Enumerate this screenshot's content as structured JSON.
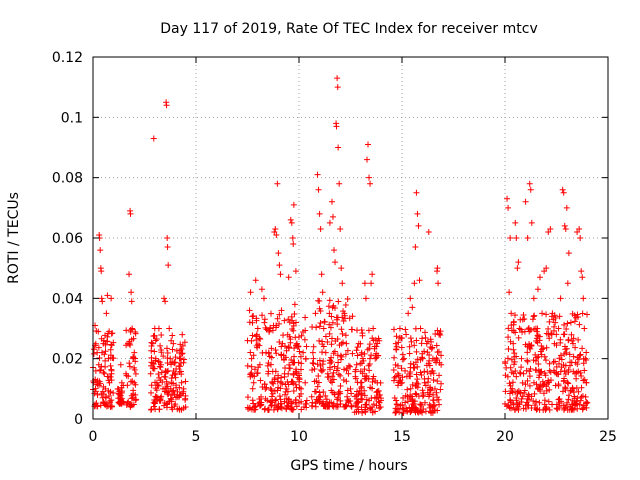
{
  "chart_data": {
    "type": "scatter",
    "title": "Day 117 of 2019, Rate Of TEC Index for receiver mtcv",
    "xlabel": "GPS time / hours",
    "ylabel": "ROTI / TECUs",
    "xlim": [
      0,
      25
    ],
    "ylim": [
      0,
      0.12
    ],
    "grid": true,
    "marker": "+",
    "color": "#ff0000",
    "x_ticks": [
      0,
      5,
      10,
      15,
      20,
      25
    ],
    "x_tick_labels": [
      "0",
      "5",
      "10",
      "15",
      "20",
      "25"
    ],
    "y_ticks": [
      0,
      0.02,
      0.04,
      0.06,
      0.08,
      0.1,
      0.12
    ],
    "y_tick_labels": [
      "0",
      "0.02",
      "0.04",
      "0.06",
      "0.08",
      "0.1",
      "0.12"
    ],
    "series": [
      {
        "name": "ROTI",
        "points": [
          [
            0.1,
            0.031
          ],
          [
            0.15,
            0.012
          ],
          [
            0.2,
            0.022
          ],
          [
            0.22,
            0.008
          ],
          [
            0.28,
            0.018
          ],
          [
            0.3,
            0.061
          ],
          [
            0.32,
            0.06
          ],
          [
            0.35,
            0.056
          ],
          [
            0.38,
            0.05
          ],
          [
            0.4,
            0.049
          ],
          [
            0.42,
            0.04
          ],
          [
            0.45,
            0.039
          ],
          [
            0.5,
            0.025
          ],
          [
            0.55,
            0.015
          ],
          [
            0.6,
            0.01
          ],
          [
            0.65,
            0.035
          ],
          [
            0.7,
            0.041
          ],
          [
            0.75,
            0.02
          ],
          [
            0.8,
            0.012
          ],
          [
            0.85,
            0.009
          ],
          [
            0.88,
            0.04
          ],
          [
            0.9,
            0.015
          ],
          [
            1.2,
            0.01
          ],
          [
            1.3,
            0.008
          ],
          [
            1.35,
            0.018
          ],
          [
            1.4,
            0.012
          ],
          [
            1.6,
            0.015
          ],
          [
            1.7,
            0.025
          ],
          [
            1.75,
            0.048
          ],
          [
            1.8,
            0.069
          ],
          [
            1.82,
            0.068
          ],
          [
            1.85,
            0.042
          ],
          [
            1.88,
            0.039
          ],
          [
            1.9,
            0.03
          ],
          [
            1.95,
            0.02
          ],
          [
            2.0,
            0.012
          ],
          [
            2.05,
            0.008
          ],
          [
            2.8,
            0.015
          ],
          [
            2.9,
            0.025
          ],
          [
            2.95,
            0.093
          ],
          [
            3.0,
            0.03
          ],
          [
            3.05,
            0.02
          ],
          [
            3.1,
            0.012
          ],
          [
            3.2,
            0.03
          ],
          [
            3.3,
            0.018
          ],
          [
            3.4,
            0.01
          ],
          [
            3.45,
            0.04
          ],
          [
            3.5,
            0.039
          ],
          [
            3.55,
            0.105
          ],
          [
            3.57,
            0.104
          ],
          [
            3.6,
            0.06
          ],
          [
            3.62,
            0.057
          ],
          [
            3.65,
            0.051
          ],
          [
            3.7,
            0.03
          ],
          [
            3.75,
            0.02
          ],
          [
            3.8,
            0.012
          ],
          [
            3.9,
            0.025
          ],
          [
            4.0,
            0.015
          ],
          [
            4.1,
            0.009
          ],
          [
            4.2,
            0.02
          ],
          [
            4.3,
            0.012
          ],
          [
            4.4,
            0.01
          ],
          [
            7.5,
            0.026
          ],
          [
            7.6,
            0.036
          ],
          [
            7.65,
            0.042
          ],
          [
            7.7,
            0.02
          ],
          [
            7.8,
            0.012
          ],
          [
            7.9,
            0.046
          ],
          [
            8.0,
            0.03
          ],
          [
            8.1,
            0.018
          ],
          [
            8.2,
            0.043
          ],
          [
            8.3,
            0.04
          ],
          [
            8.4,
            0.022
          ],
          [
            8.5,
            0.015
          ],
          [
            8.6,
            0.03
          ],
          [
            8.7,
            0.012
          ],
          [
            8.8,
            0.062
          ],
          [
            8.85,
            0.063
          ],
          [
            8.9,
            0.061
          ],
          [
            8.95,
            0.078
          ],
          [
            9.0,
            0.055
          ],
          [
            9.05,
            0.051
          ],
          [
            9.1,
            0.048
          ],
          [
            9.15,
            0.036
          ],
          [
            9.2,
            0.025
          ],
          [
            9.3,
            0.015
          ],
          [
            9.4,
            0.01
          ],
          [
            9.5,
            0.047
          ],
          [
            9.6,
            0.066
          ],
          [
            9.65,
            0.065
          ],
          [
            9.7,
            0.06
          ],
          [
            9.72,
            0.058
          ],
          [
            9.75,
            0.071
          ],
          [
            9.8,
            0.038
          ],
          [
            9.85,
            0.049
          ],
          [
            9.9,
            0.025
          ],
          [
            10.0,
            0.015
          ],
          [
            10.1,
            0.01
          ],
          [
            10.2,
            0.022
          ],
          [
            10.3,
            0.012
          ],
          [
            10.7,
            0.02
          ],
          [
            10.8,
            0.035
          ],
          [
            10.9,
            0.081
          ],
          [
            10.95,
            0.076
          ],
          [
            11.0,
            0.068
          ],
          [
            11.05,
            0.063
          ],
          [
            11.1,
            0.048
          ],
          [
            11.15,
            0.042
          ],
          [
            11.2,
            0.03
          ],
          [
            11.3,
            0.022
          ],
          [
            11.4,
            0.015
          ],
          [
            11.5,
            0.065
          ],
          [
            11.6,
            0.072
          ],
          [
            11.65,
            0.067
          ],
          [
            11.7,
            0.056
          ],
          [
            11.75,
            0.052
          ],
          [
            11.8,
            0.098
          ],
          [
            11.82,
            0.097
          ],
          [
            11.85,
            0.113
          ],
          [
            11.88,
            0.11
          ],
          [
            11.9,
            0.09
          ],
          [
            11.95,
            0.078
          ],
          [
            12.0,
            0.063
          ],
          [
            12.05,
            0.05
          ],
          [
            12.1,
            0.045
          ],
          [
            12.2,
            0.035
          ],
          [
            12.3,
            0.025
          ],
          [
            12.4,
            0.015
          ],
          [
            12.5,
            0.01
          ],
          [
            12.8,
            0.018
          ],
          [
            12.9,
            0.025
          ],
          [
            13.0,
            0.012
          ],
          [
            13.1,
            0.02
          ],
          [
            13.2,
            0.045
          ],
          [
            13.25,
            0.04
          ],
          [
            13.3,
            0.086
          ],
          [
            13.35,
            0.091
          ],
          [
            13.4,
            0.08
          ],
          [
            13.45,
            0.078
          ],
          [
            13.5,
            0.045
          ],
          [
            13.55,
            0.048
          ],
          [
            13.6,
            0.03
          ],
          [
            13.7,
            0.02
          ],
          [
            13.8,
            0.012
          ],
          [
            13.9,
            0.008
          ],
          [
            14.7,
            0.025
          ],
          [
            14.8,
            0.015
          ],
          [
            14.9,
            0.03
          ],
          [
            15.0,
            0.012
          ],
          [
            15.1,
            0.02
          ],
          [
            15.2,
            0.028
          ],
          [
            15.3,
            0.035
          ],
          [
            15.4,
            0.04
          ],
          [
            15.5,
            0.037
          ],
          [
            15.6,
            0.045
          ],
          [
            15.65,
            0.057
          ],
          [
            15.7,
            0.075
          ],
          [
            15.75,
            0.068
          ],
          [
            15.8,
            0.064
          ],
          [
            15.85,
            0.046
          ],
          [
            15.9,
            0.03
          ],
          [
            16.0,
            0.02
          ],
          [
            16.1,
            0.012
          ],
          [
            16.2,
            0.025
          ],
          [
            16.3,
            0.062
          ],
          [
            16.4,
            0.015
          ],
          [
            16.5,
            0.02
          ],
          [
            16.6,
            0.01
          ],
          [
            16.7,
            0.049
          ],
          [
            16.72,
            0.05
          ],
          [
            16.75,
            0.045
          ],
          [
            16.8,
            0.028
          ],
          [
            16.9,
            0.018
          ],
          [
            20.0,
            0.005
          ],
          [
            20.1,
            0.073
          ],
          [
            20.15,
            0.07
          ],
          [
            20.2,
            0.042
          ],
          [
            20.25,
            0.06
          ],
          [
            20.3,
            0.035
          ],
          [
            20.4,
            0.025
          ],
          [
            20.5,
            0.065
          ],
          [
            20.55,
            0.06
          ],
          [
            20.6,
            0.05
          ],
          [
            20.65,
            0.052
          ],
          [
            20.7,
            0.03
          ],
          [
            20.8,
            0.02
          ],
          [
            20.9,
            0.015
          ],
          [
            21.0,
            0.072
          ],
          [
            21.1,
            0.06
          ],
          [
            21.2,
            0.078
          ],
          [
            21.25,
            0.076
          ],
          [
            21.3,
            0.065
          ],
          [
            21.4,
            0.04
          ],
          [
            21.5,
            0.03
          ],
          [
            21.6,
            0.043
          ],
          [
            21.7,
            0.047
          ],
          [
            21.8,
            0.035
          ],
          [
            21.9,
            0.049
          ],
          [
            22.0,
            0.05
          ],
          [
            22.1,
            0.062
          ],
          [
            22.2,
            0.063
          ],
          [
            22.3,
            0.035
          ],
          [
            22.4,
            0.025
          ],
          [
            22.5,
            0.015
          ],
          [
            22.6,
            0.03
          ],
          [
            22.7,
            0.04
          ],
          [
            22.8,
            0.076
          ],
          [
            22.85,
            0.075
          ],
          [
            22.9,
            0.064
          ],
          [
            22.95,
            0.063
          ],
          [
            23.0,
            0.07
          ],
          [
            23.05,
            0.045
          ],
          [
            23.1,
            0.055
          ],
          [
            23.2,
            0.032
          ],
          [
            23.3,
            0.025
          ],
          [
            23.4,
            0.015
          ],
          [
            23.5,
            0.062
          ],
          [
            23.6,
            0.063
          ],
          [
            23.65,
            0.06
          ],
          [
            23.7,
            0.049
          ],
          [
            23.75,
            0.047
          ],
          [
            23.8,
            0.04
          ],
          [
            23.85,
            0.03
          ],
          [
            23.9,
            0.02
          ],
          [
            23.95,
            0.012
          ]
        ]
      }
    ],
    "dense_segments": [
      {
        "start": 0.0,
        "end": 1.0,
        "low": 0.004,
        "high": 0.03
      },
      {
        "start": 1.2,
        "end": 1.5,
        "low": 0.005,
        "high": 0.012
      },
      {
        "start": 1.6,
        "end": 2.1,
        "low": 0.004,
        "high": 0.03
      },
      {
        "start": 2.8,
        "end": 4.5,
        "low": 0.003,
        "high": 0.028
      },
      {
        "start": 7.5,
        "end": 10.4,
        "low": 0.003,
        "high": 0.035
      },
      {
        "start": 10.6,
        "end": 12.6,
        "low": 0.004,
        "high": 0.04
      },
      {
        "start": 12.7,
        "end": 14.0,
        "low": 0.002,
        "high": 0.03
      },
      {
        "start": 14.6,
        "end": 16.9,
        "low": 0.002,
        "high": 0.03
      },
      {
        "start": 20.0,
        "end": 24.0,
        "low": 0.003,
        "high": 0.035
      }
    ]
  }
}
